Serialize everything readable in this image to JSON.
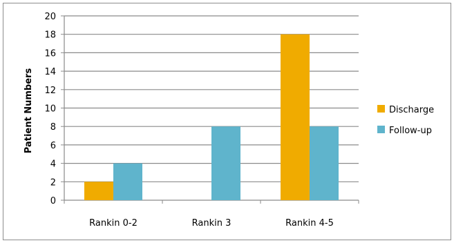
{
  "chart_data": {
    "type": "bar",
    "title": "",
    "xlabel": "",
    "ylabel": "Patient Numbers",
    "categories": [
      "Rankin 0-2",
      "Rankin 3",
      "Rankin 4-5"
    ],
    "ylim": [
      0,
      20
    ],
    "yticks": [
      0,
      2,
      4,
      6,
      8,
      10,
      12,
      14,
      16,
      18,
      20
    ],
    "grid": true,
    "legend_position": "right",
    "series": [
      {
        "name": "Discharge",
        "values": [
          2,
          0,
          18
        ],
        "color": "#f0ab00"
      },
      {
        "name": "Follow-up",
        "values": [
          4,
          8,
          8
        ],
        "color": "#5fb4cc"
      }
    ]
  }
}
